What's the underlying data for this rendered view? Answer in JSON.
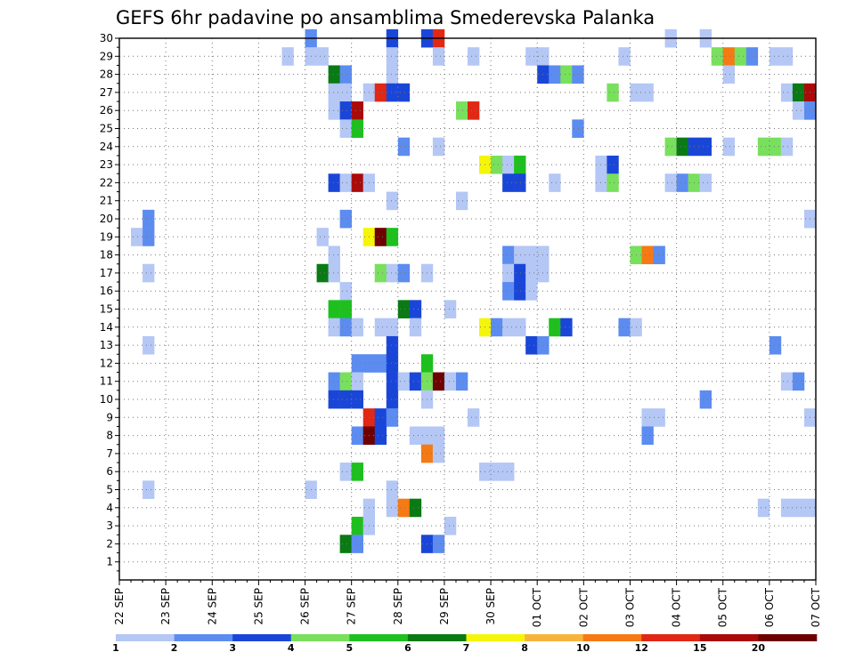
{
  "chart_data": {
    "type": "heatmap",
    "title": "GEFS 6hr padavine po ansamblima Smederevska Palanka",
    "x_tick_labels": [
      "22 SEP",
      "23 SEP",
      "24 SEP",
      "25 SEP",
      "26 SEP",
      "27 SEP",
      "28 SEP",
      "29 SEP",
      "30 SEP",
      "01 OCT",
      "02 OCT",
      "03 OCT",
      "04 OCT",
      "05 OCT",
      "06 OCT",
      "07 OCT"
    ],
    "x_steps_per_day": 4,
    "y_tick_labels": [
      "1",
      "2",
      "3",
      "4",
      "5",
      "6",
      "7",
      "8",
      "9",
      "10",
      "11",
      "12",
      "13",
      "14",
      "15",
      "16",
      "17",
      "18",
      "19",
      "20",
      "21",
      "22",
      "23",
      "24",
      "25",
      "26",
      "27",
      "28",
      "29",
      "30"
    ],
    "colorbar": {
      "levels": [
        1,
        2,
        3,
        4,
        5,
        6,
        7,
        8,
        10,
        12,
        15,
        20
      ],
      "level_labels": [
        "1",
        "2",
        "3",
        "4",
        "5",
        "6",
        "7",
        "8",
        "10",
        "12",
        "15",
        "20"
      ],
      "colors": [
        "#b4c7f5",
        "#5c8cf0",
        "#1a46d8",
        "#78e05c",
        "#1ec01e",
        "#0a7a14",
        "#f5f50a",
        "#f7b43c",
        "#f57a14",
        "#e02814",
        "#aa0a0a",
        "#6e0000"
      ]
    },
    "cells": [
      [
        30,
        16,
        1
      ],
      [
        30,
        23,
        2
      ],
      [
        30,
        26,
        2
      ],
      [
        30,
        27,
        9
      ],
      [
        30,
        47,
        0
      ],
      [
        30,
        50,
        0
      ],
      [
        29,
        14,
        0
      ],
      [
        29,
        16,
        0
      ],
      [
        29,
        17,
        0
      ],
      [
        29,
        23,
        0
      ],
      [
        29,
        27,
        0
      ],
      [
        29,
        30,
        0
      ],
      [
        29,
        35,
        0
      ],
      [
        29,
        36,
        0
      ],
      [
        29,
        43,
        0
      ],
      [
        29,
        51,
        3
      ],
      [
        29,
        52,
        8
      ],
      [
        29,
        53,
        3
      ],
      [
        29,
        54,
        1
      ],
      [
        29,
        56,
        0
      ],
      [
        29,
        57,
        0
      ],
      [
        28,
        18,
        5
      ],
      [
        28,
        19,
        1
      ],
      [
        28,
        23,
        0
      ],
      [
        28,
        36,
        2
      ],
      [
        28,
        37,
        1
      ],
      [
        28,
        38,
        3
      ],
      [
        28,
        39,
        1
      ],
      [
        28,
        52,
        0
      ],
      [
        27,
        18,
        0
      ],
      [
        27,
        19,
        0
      ],
      [
        27,
        21,
        0
      ],
      [
        27,
        22,
        9
      ],
      [
        27,
        23,
        2
      ],
      [
        27,
        24,
        2
      ],
      [
        27,
        42,
        3
      ],
      [
        27,
        44,
        0
      ],
      [
        27,
        45,
        0
      ],
      [
        27,
        57,
        0
      ],
      [
        27,
        58,
        5
      ],
      [
        27,
        59,
        10
      ],
      [
        26,
        18,
        0
      ],
      [
        26,
        19,
        2
      ],
      [
        26,
        20,
        10
      ],
      [
        26,
        29,
        3
      ],
      [
        26,
        30,
        9
      ],
      [
        26,
        58,
        0
      ],
      [
        26,
        59,
        1
      ],
      [
        25,
        19,
        0
      ],
      [
        25,
        20,
        4
      ],
      [
        25,
        39,
        1
      ],
      [
        24,
        24,
        1
      ],
      [
        24,
        27,
        0
      ],
      [
        24,
        47,
        3
      ],
      [
        24,
        48,
        5
      ],
      [
        24,
        49,
        2
      ],
      [
        24,
        50,
        2
      ],
      [
        24,
        52,
        0
      ],
      [
        24,
        55,
        3
      ],
      [
        24,
        56,
        3
      ],
      [
        24,
        57,
        0
      ],
      [
        23,
        31,
        6
      ],
      [
        23,
        32,
        3
      ],
      [
        23,
        33,
        0
      ],
      [
        23,
        34,
        4
      ],
      [
        23,
        41,
        0
      ],
      [
        23,
        42,
        2
      ],
      [
        22,
        18,
        2
      ],
      [
        22,
        19,
        0
      ],
      [
        22,
        20,
        10
      ],
      [
        22,
        21,
        0
      ],
      [
        22,
        33,
        2
      ],
      [
        22,
        34,
        2
      ],
      [
        22,
        37,
        0
      ],
      [
        22,
        41,
        0
      ],
      [
        22,
        42,
        3
      ],
      [
        22,
        47,
        0
      ],
      [
        22,
        48,
        1
      ],
      [
        22,
        49,
        3
      ],
      [
        22,
        50,
        0
      ],
      [
        21,
        23,
        0
      ],
      [
        21,
        29,
        0
      ],
      [
        20,
        2,
        1
      ],
      [
        20,
        19,
        1
      ],
      [
        20,
        59,
        0
      ],
      [
        19,
        1,
        0
      ],
      [
        19,
        2,
        1
      ],
      [
        19,
        17,
        0
      ],
      [
        19,
        21,
        6
      ],
      [
        19,
        22,
        11
      ],
      [
        19,
        23,
        4
      ],
      [
        18,
        18,
        0
      ],
      [
        18,
        33,
        1
      ],
      [
        18,
        34,
        0
      ],
      [
        18,
        35,
        0
      ],
      [
        18,
        36,
        0
      ],
      [
        18,
        44,
        3
      ],
      [
        18,
        45,
        8
      ],
      [
        18,
        46,
        1
      ],
      [
        17,
        2,
        0
      ],
      [
        17,
        17,
        5
      ],
      [
        17,
        18,
        0
      ],
      [
        17,
        22,
        3
      ],
      [
        17,
        23,
        0
      ],
      [
        17,
        24,
        1
      ],
      [
        17,
        26,
        0
      ],
      [
        17,
        33,
        0
      ],
      [
        17,
        34,
        2
      ],
      [
        17,
        35,
        0
      ],
      [
        17,
        36,
        0
      ],
      [
        16,
        19,
        0
      ],
      [
        16,
        33,
        1
      ],
      [
        16,
        34,
        2
      ],
      [
        16,
        35,
        0
      ],
      [
        15,
        18,
        4
      ],
      [
        15,
        19,
        4
      ],
      [
        15,
        24,
        5
      ],
      [
        15,
        25,
        2
      ],
      [
        15,
        28,
        0
      ],
      [
        14,
        18,
        0
      ],
      [
        14,
        19,
        1
      ],
      [
        14,
        20,
        0
      ],
      [
        14,
        22,
        0
      ],
      [
        14,
        23,
        0
      ],
      [
        14,
        25,
        0
      ],
      [
        14,
        31,
        6
      ],
      [
        14,
        32,
        1
      ],
      [
        14,
        33,
        0
      ],
      [
        14,
        34,
        0
      ],
      [
        14,
        37,
        4
      ],
      [
        14,
        38,
        2
      ],
      [
        14,
        43,
        1
      ],
      [
        14,
        44,
        0
      ],
      [
        13,
        2,
        0
      ],
      [
        13,
        23,
        2
      ],
      [
        13,
        35,
        2
      ],
      [
        13,
        36,
        1
      ],
      [
        13,
        56,
        1
      ],
      [
        12,
        20,
        1
      ],
      [
        12,
        21,
        1
      ],
      [
        12,
        22,
        1
      ],
      [
        12,
        23,
        2
      ],
      [
        12,
        26,
        4
      ],
      [
        11,
        18,
        1
      ],
      [
        11,
        19,
        3
      ],
      [
        11,
        20,
        0
      ],
      [
        11,
        23,
        2
      ],
      [
        11,
        24,
        0
      ],
      [
        11,
        25,
        2
      ],
      [
        11,
        26,
        3
      ],
      [
        11,
        27,
        11
      ],
      [
        11,
        28,
        0
      ],
      [
        11,
        29,
        1
      ],
      [
        11,
        57,
        0
      ],
      [
        11,
        58,
        1
      ],
      [
        10,
        18,
        2
      ],
      [
        10,
        19,
        2
      ],
      [
        10,
        20,
        2
      ],
      [
        10,
        23,
        2
      ],
      [
        10,
        26,
        0
      ],
      [
        10,
        50,
        1
      ],
      [
        9,
        21,
        9
      ],
      [
        9,
        22,
        2
      ],
      [
        9,
        23,
        1
      ],
      [
        9,
        30,
        0
      ],
      [
        9,
        45,
        0
      ],
      [
        9,
        46,
        0
      ],
      [
        9,
        59,
        0
      ],
      [
        8,
        20,
        1
      ],
      [
        8,
        21,
        11
      ],
      [
        8,
        22,
        2
      ],
      [
        8,
        25,
        0
      ],
      [
        8,
        26,
        0
      ],
      [
        8,
        27,
        0
      ],
      [
        8,
        45,
        1
      ],
      [
        7,
        26,
        8
      ],
      [
        7,
        27,
        0
      ],
      [
        6,
        19,
        0
      ],
      [
        6,
        20,
        4
      ],
      [
        6,
        31,
        0
      ],
      [
        6,
        32,
        0
      ],
      [
        6,
        33,
        0
      ],
      [
        5,
        2,
        0
      ],
      [
        5,
        16,
        0
      ],
      [
        5,
        23,
        0
      ],
      [
        4,
        21,
        0
      ],
      [
        4,
        23,
        0
      ],
      [
        4,
        24,
        8
      ],
      [
        4,
        25,
        5
      ],
      [
        4,
        55,
        0
      ],
      [
        4,
        57,
        0
      ],
      [
        4,
        58,
        0
      ],
      [
        4,
        59,
        0
      ],
      [
        3,
        20,
        4
      ],
      [
        3,
        21,
        0
      ],
      [
        3,
        28,
        0
      ],
      [
        2,
        19,
        5
      ],
      [
        2,
        20,
        1
      ],
      [
        2,
        26,
        2
      ],
      [
        2,
        27,
        1
      ]
    ]
  }
}
